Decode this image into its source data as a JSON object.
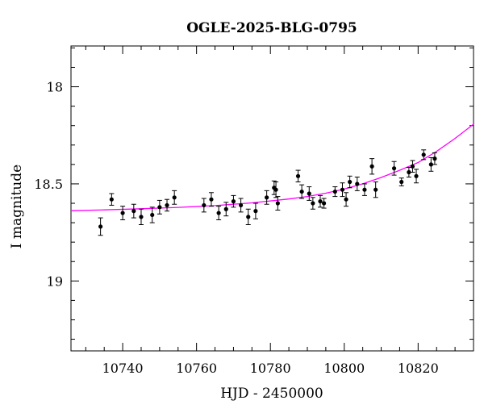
{
  "chart_data": {
    "type": "scatter",
    "title": "OGLE-2025-BLG-0795",
    "xlabel": "HJD - 2450000",
    "ylabel": "I magnitude",
    "xlim": [
      10726,
      10835
    ],
    "ylim": [
      19.36,
      17.79
    ],
    "y_inverted": true,
    "grid": false,
    "x_ticks_major": [
      10740,
      10760,
      10780,
      10800,
      10820
    ],
    "x_tick_labels": [
      "10740",
      "10760",
      "10780",
      "10800",
      "10820"
    ],
    "x_ticks_minor_step": 5,
    "y_ticks_major": [
      18,
      18.5,
      19
    ],
    "y_tick_labels": [
      "18",
      "18.5",
      "19"
    ],
    "y_ticks_minor_step": 0.1,
    "colors": {
      "points": "#000000",
      "model": "#ff00ff"
    },
    "series": [
      {
        "x": [
          10734.0,
          10737.0,
          10740.0,
          10743.0,
          10745.0,
          10748.0,
          10750.0,
          10752.0,
          10754.0,
          10762.0,
          10764.0,
          10766.0,
          10768.0,
          10770.0,
          10772.0,
          10774.0,
          10776.0,
          10779.0,
          10781.0,
          10781.5,
          10782.0,
          10787.5,
          10788.5,
          10790.5,
          10791.5,
          10793.5,
          10794.5,
          10797.5,
          10799.5,
          10800.5,
          10801.5,
          10803.5,
          10805.5,
          10807.5,
          10808.5,
          10813.5,
          10815.5,
          10817.5,
          10818.5,
          10819.5,
          10821.5,
          10823.5,
          10824.5
        ],
        "y": [
          18.72,
          18.58,
          18.65,
          18.64,
          18.67,
          18.66,
          18.62,
          18.61,
          18.57,
          18.61,
          18.58,
          18.65,
          18.63,
          18.59,
          18.61,
          18.67,
          18.64,
          18.57,
          18.52,
          18.53,
          18.6,
          18.46,
          18.54,
          18.55,
          18.6,
          18.59,
          18.6,
          18.54,
          18.53,
          18.58,
          18.49,
          18.5,
          18.53,
          18.41,
          18.53,
          18.42,
          18.49,
          18.44,
          18.41,
          18.46,
          18.35,
          18.4,
          18.37
        ],
        "yerr": [
          0.045,
          0.03,
          0.035,
          0.035,
          0.04,
          0.04,
          0.035,
          0.03,
          0.035,
          0.035,
          0.035,
          0.035,
          0.035,
          0.03,
          0.035,
          0.04,
          0.04,
          0.035,
          0.035,
          0.04,
          0.035,
          0.03,
          0.035,
          0.035,
          0.03,
          0.03,
          0.025,
          0.025,
          0.035,
          0.035,
          0.03,
          0.035,
          0.03,
          0.04,
          0.04,
          0.035,
          0.02,
          0.025,
          0.03,
          0.035,
          0.025,
          0.035,
          0.03
        ]
      },
      {
        "type": "line",
        "x": [
          10726,
          10735,
          10745,
          10755,
          10765,
          10775,
          10785,
          10790,
          10795,
          10800,
          10805,
          10810,
          10815,
          10820,
          10825,
          10830,
          10835
        ],
        "y": [
          18.638,
          18.634,
          18.628,
          18.621,
          18.612,
          18.598,
          18.578,
          18.565,
          18.548,
          18.527,
          18.5,
          18.467,
          18.43,
          18.39,
          18.333,
          18.266,
          18.193
        ]
      }
    ]
  }
}
